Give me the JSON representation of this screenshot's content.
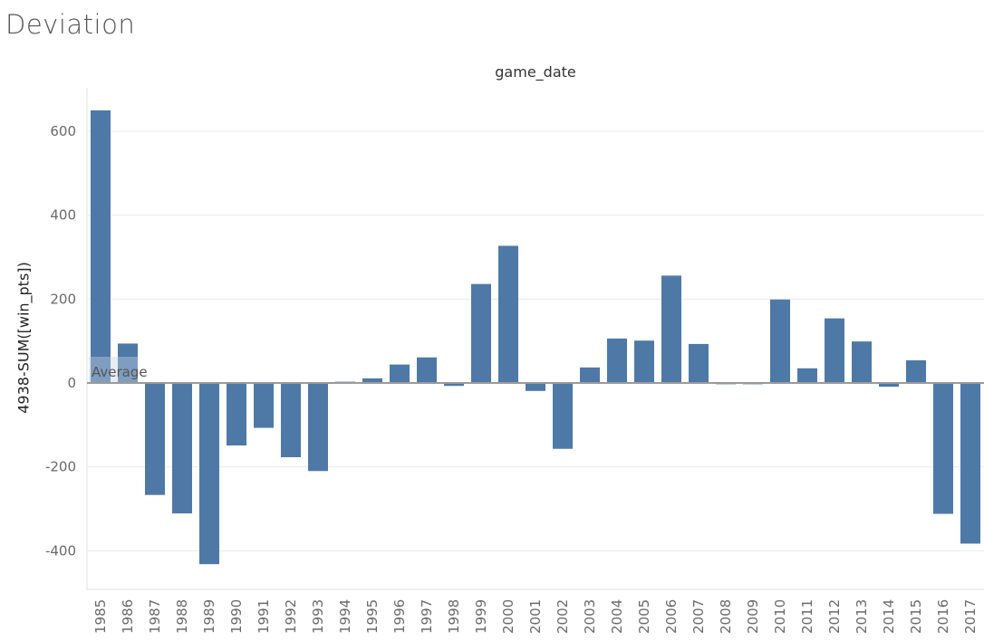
{
  "title": "Deviation",
  "chart_data": {
    "type": "bar",
    "column_header": "game_date",
    "xlabel": "",
    "ylabel": "4938-SUM([win_pts])",
    "ylim": [
      -480,
      700
    ],
    "yticks": [
      -400,
      -200,
      0,
      200,
      400,
      600
    ],
    "grid": "horizontal",
    "bar_color": "#4e79a7",
    "reference_line": {
      "label": "Average",
      "value": 0
    },
    "categories": [
      "1985",
      "1986",
      "1987",
      "1988",
      "1989",
      "1990",
      "1991",
      "1992",
      "1993",
      "1994",
      "1995",
      "1996",
      "1997",
      "1998",
      "1999",
      "2000",
      "2001",
      "2002",
      "2003",
      "2004",
      "2005",
      "2006",
      "2007",
      "2008",
      "2009",
      "2010",
      "2011",
      "2012",
      "2013",
      "2014",
      "2015",
      "2016",
      "2017"
    ],
    "values": [
      650,
      94,
      -267,
      -311,
      -432,
      -149,
      -107,
      -177,
      -210,
      3,
      11,
      44,
      61,
      -7,
      236,
      327,
      -19,
      -157,
      37,
      106,
      101,
      256,
      93,
      -3,
      -3,
      199,
      35,
      154,
      99,
      -9,
      54,
      -312,
      -383
    ]
  }
}
